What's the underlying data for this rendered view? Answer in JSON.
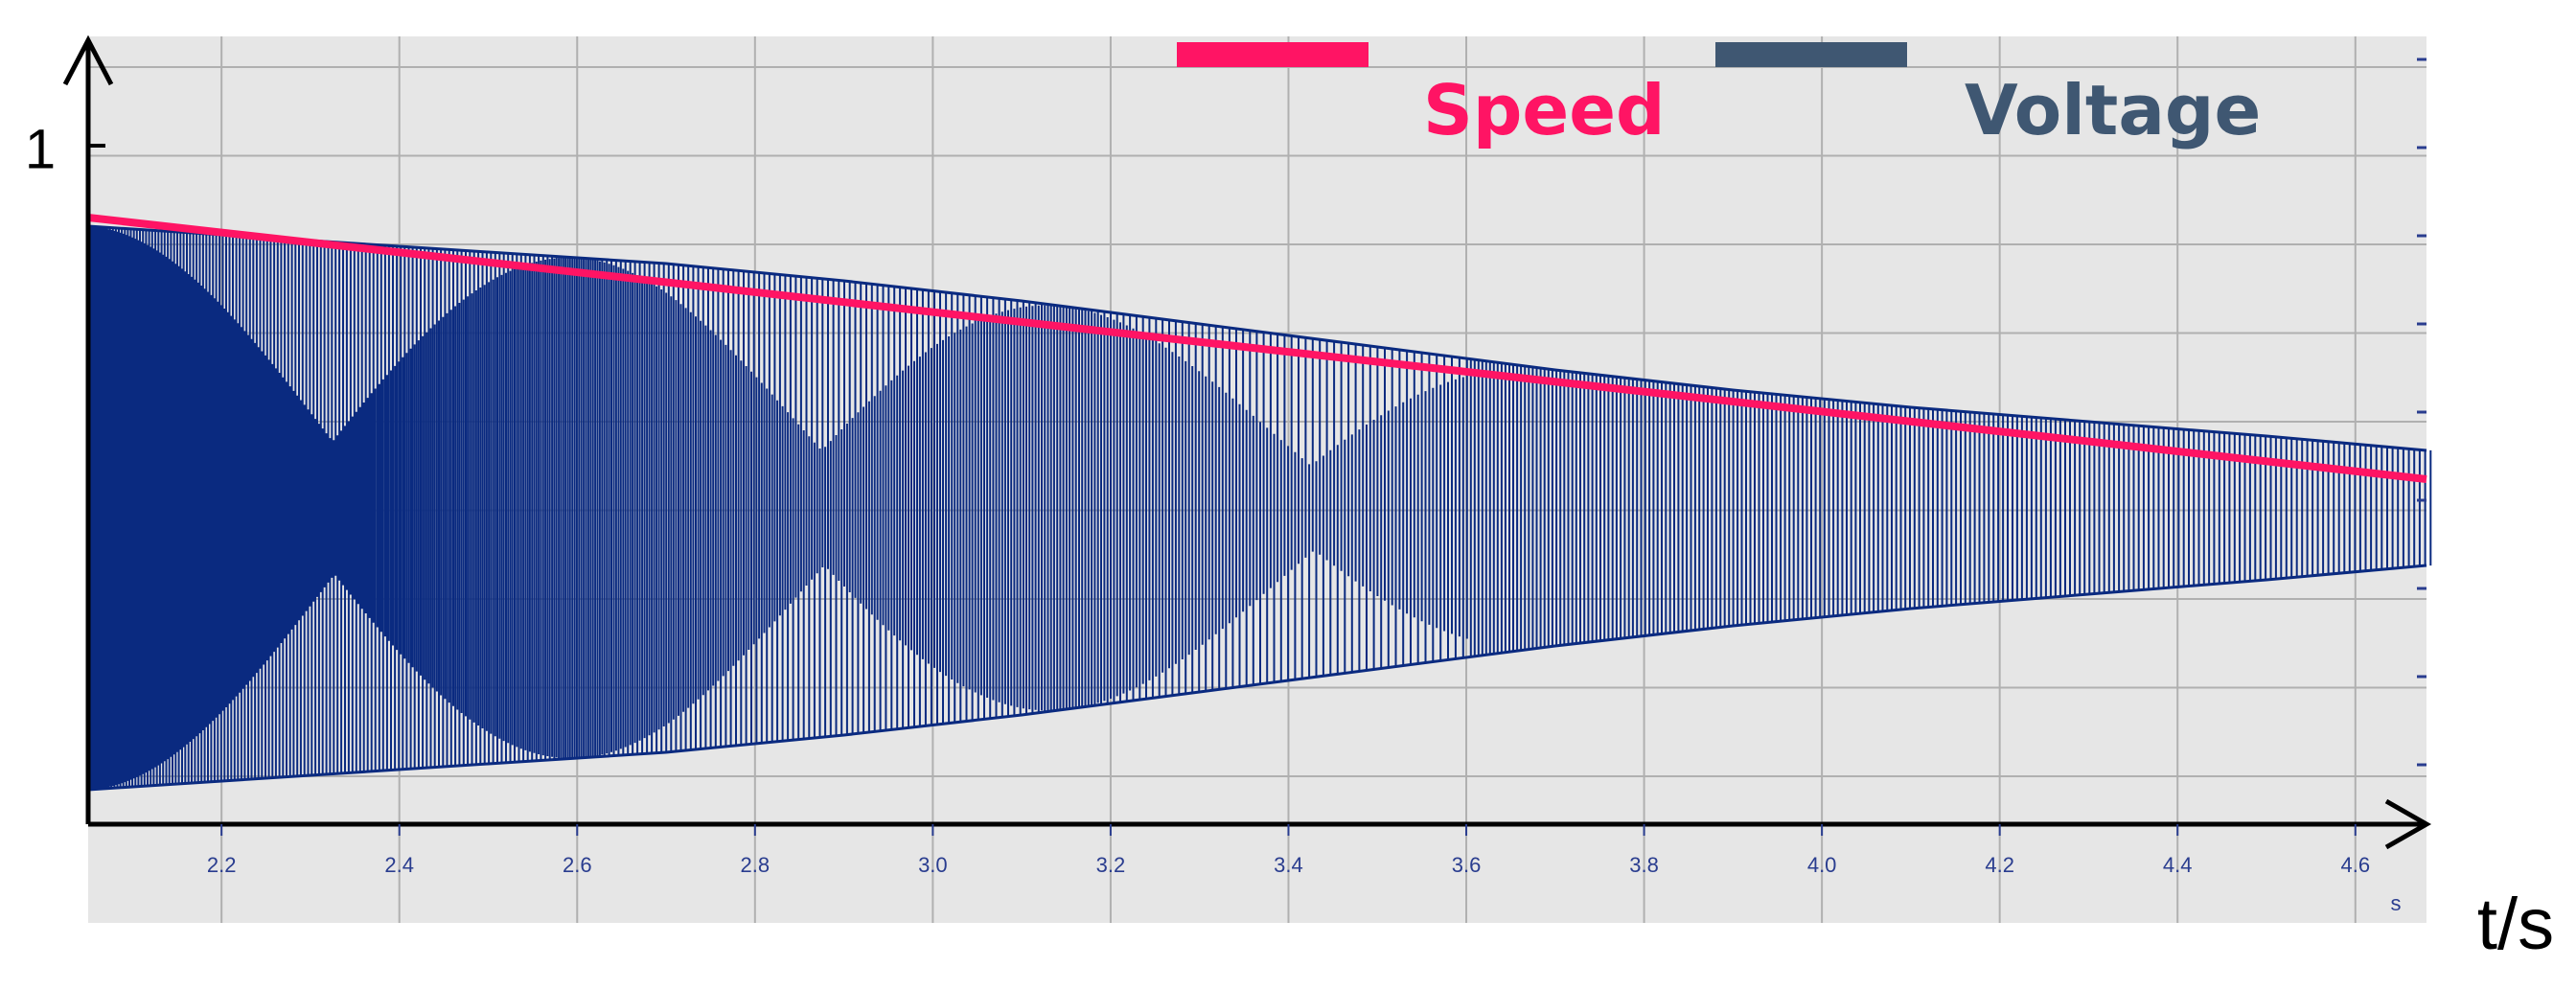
{
  "chart_data": {
    "type": "line",
    "xlabel": "t/s",
    "x_unit": "s",
    "y_tick_label": "1",
    "xlim": [
      2.05,
      4.68
    ],
    "ylim": [
      -1.1,
      1.1
    ],
    "x_ticks": [
      {
        "value": 2.2,
        "label": "2.2"
      },
      {
        "value": 2.4,
        "label": "2.4"
      },
      {
        "value": 2.6,
        "label": "2.6"
      },
      {
        "value": 2.8,
        "label": "2.8"
      },
      {
        "value": 3.0,
        "label": "3.0"
      },
      {
        "value": 3.2,
        "label": "3.2"
      },
      {
        "value": 3.4,
        "label": "3.4"
      },
      {
        "value": 3.6,
        "label": "3.6"
      },
      {
        "value": 3.8,
        "label": "3.8"
      },
      {
        "value": 4.0,
        "label": "4.0"
      },
      {
        "value": 4.2,
        "label": "4.2"
      },
      {
        "value": 4.4,
        "label": "4.4"
      },
      {
        "value": 4.6,
        "label": "4.6"
      }
    ],
    "y_tick_value": 0.79,
    "grid": true,
    "legend_placement": "top",
    "series": [
      {
        "name": "Speed",
        "color": "#ff1464",
        "kind": "line",
        "x": [
          2.05,
          4.68
        ],
        "y": [
          1.01,
          0.1
        ]
      },
      {
        "name": "Voltage",
        "color": "#0a2a80",
        "legend_color": "#3f5772",
        "kind": "oscillation",
        "envelope": {
          "x": [
            2.05,
            2.3,
            2.5,
            2.7,
            2.9,
            3.1,
            3.3,
            3.5,
            3.7,
            3.9,
            4.1,
            4.3,
            4.5,
            4.68
          ],
          "y": [
            0.98,
            0.93,
            0.89,
            0.85,
            0.79,
            0.72,
            0.64,
            0.56,
            0.48,
            0.41,
            0.35,
            0.3,
            0.25,
            0.2
          ]
        }
      }
    ]
  },
  "colors": {
    "plot_background": "#e6e6e6",
    "grid": "#b0b0b0",
    "axis": "#000000",
    "tick_label": "#2a3d8f",
    "speed": "#ff1464",
    "voltage_trace": "#0a2a80",
    "voltage_legend": "#3f5772"
  }
}
